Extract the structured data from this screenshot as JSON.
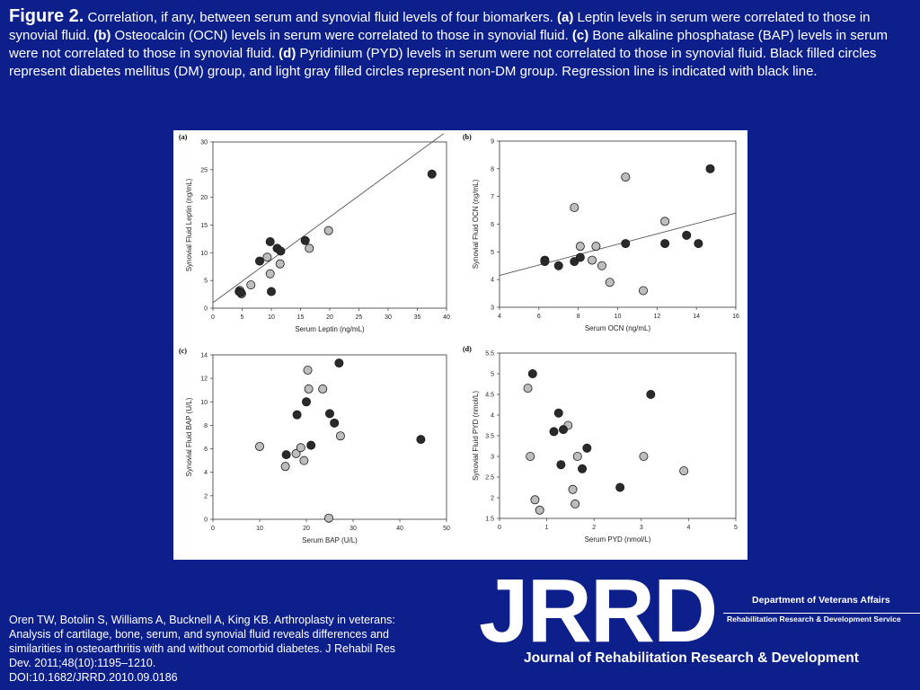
{
  "caption": {
    "figure_label": "Figure 2.",
    "intro": " Correlation, if any, between serum and synovial fluid levels of four biomarkers. ",
    "a_label": "(a)",
    "a_text": " Leptin levels in serum were correlated to those in synovial fluid. ",
    "b_label": "(b)",
    "b_text": " Osteocalcin (OCN) levels in serum were correlated to those in synovial fluid. ",
    "c_label": "(c)",
    "c_text": " Bone alkaline phosphatase (BAP) levels in serum were not correlated to those in synovial fluid. ",
    "d_label": "(d)",
    "d_text": " Pyridinium (PYD) levels in serum were not correlated to those in synovial fluid. Black filled circles represent diabetes mellitus (DM) group, and light gray filled circles represent non-DM group. Regression line is indicated with black line."
  },
  "citation": {
    "line1": "Oren TW, Botolin S, Williams A, Bucknell A, King KB. Arthroplasty in veterans:",
    "line2": "Analysis of cartilage, bone, serum, and synovial fluid reveals differences and",
    "line3": "similarities in osteoarthritis with and without comorbid diabetes. J Rehabil Res",
    "line4": "Dev. 2011;48(10):1195–1210.",
    "line5": "DOI:10.1682/JRRD.2010.09.0186"
  },
  "logo": {
    "text": "JRRD",
    "subtitle": "Journal of Rehabilitation Research & Development",
    "department": "Department of Veterans Affairs",
    "service": "Rehabilitation Research & Development Service"
  },
  "colors": {
    "background": "#0d1f8a",
    "dm": "#2a2a2a",
    "non_dm": "#bdbdbd",
    "regression": "#555555"
  },
  "chart_data": [
    {
      "type": "scatter",
      "panel_label": "(a)",
      "xlabel": "Serum Leptin (ng/mL)",
      "ylabel": "Synovial Fluid Leptin (ng/mL)",
      "xlim": [
        0,
        40
      ],
      "ylim": [
        0,
        30
      ],
      "xticks": [
        0,
        5,
        10,
        15,
        20,
        25,
        30,
        35,
        40
      ],
      "yticks": [
        0,
        5,
        10,
        15,
        20,
        25,
        30
      ],
      "regression": [
        [
          0,
          1
        ],
        [
          39.5,
          31.5
        ]
      ],
      "series": [
        {
          "group": "DM",
          "points": [
            [
              4.5,
              3.0
            ],
            [
              4.8,
              2.8
            ],
            [
              8,
              8.5
            ],
            [
              9.8,
              12
            ],
            [
              10,
              3
            ],
            [
              11,
              10.8
            ],
            [
              11.6,
              10.3
            ],
            [
              15.8,
              12.2
            ],
            [
              37.5,
              24.2
            ]
          ]
        },
        {
          "group": "non-DM",
          "points": [
            [
              4.6,
              3.2
            ],
            [
              4.9,
              2.6
            ],
            [
              6.5,
              4.2
            ],
            [
              9.3,
              9.2
            ],
            [
              9.8,
              6.2
            ],
            [
              11.5,
              8
            ],
            [
              16.5,
              10.8
            ],
            [
              19.8,
              14
            ]
          ]
        }
      ]
    },
    {
      "type": "scatter",
      "panel_label": "(b)",
      "xlabel": "Serum OCN (ng/mL)",
      "ylabel": "Synovial Fluid OCN (ng/mL)",
      "xlim": [
        4,
        16
      ],
      "ylim": [
        3,
        9
      ],
      "xticks": [
        4,
        6,
        8,
        10,
        12,
        14,
        16
      ],
      "yticks": [
        3,
        4,
        5,
        6,
        7,
        8,
        9
      ],
      "regression": [
        [
          4,
          4.15
        ],
        [
          16,
          6.4
        ]
      ],
      "series": [
        {
          "group": "DM",
          "points": [
            [
              6.3,
              4.7
            ],
            [
              6.3,
              4.65
            ],
            [
              7,
              4.5
            ],
            [
              7.8,
              4.65
            ],
            [
              8.1,
              4.8
            ],
            [
              10.4,
              5.3
            ],
            [
              12.4,
              5.3
            ],
            [
              13.5,
              5.6
            ],
            [
              14.1,
              5.3
            ],
            [
              14.7,
              8
            ]
          ]
        },
        {
          "group": "non-DM",
          "points": [
            [
              7.8,
              6.6
            ],
            [
              8.1,
              5.2
            ],
            [
              8.7,
              4.7
            ],
            [
              8.9,
              5.2
            ],
            [
              9.2,
              4.5
            ],
            [
              9.6,
              3.9
            ],
            [
              10.4,
              7.7
            ],
            [
              11.3,
              3.6
            ],
            [
              12.4,
              6.1
            ]
          ]
        }
      ]
    },
    {
      "type": "scatter",
      "panel_label": "(c)",
      "xlabel": "Serum BAP (U/L)",
      "ylabel": "Synovial Fluid BAP (U/L)",
      "xlim": [
        0,
        50
      ],
      "ylim": [
        0,
        14
      ],
      "xticks": [
        0,
        10,
        20,
        30,
        40,
        50
      ],
      "yticks": [
        0,
        2,
        4,
        6,
        8,
        10,
        12,
        14
      ],
      "series": [
        {
          "group": "DM",
          "points": [
            [
              15.7,
              5.5
            ],
            [
              18,
              8.9
            ],
            [
              20,
              10
            ],
            [
              21,
              6.3
            ],
            [
              25,
              9
            ],
            [
              26,
              8.2
            ],
            [
              27,
              13.3
            ],
            [
              44.5,
              6.8
            ]
          ]
        },
        {
          "group": "non-DM",
          "points": [
            [
              10,
              6.2
            ],
            [
              15.5,
              4.5
            ],
            [
              17.8,
              5.6
            ],
            [
              18.8,
              6.1
            ],
            [
              19.5,
              5
            ],
            [
              20.3,
              12.7
            ],
            [
              20.5,
              11.1
            ],
            [
              23.5,
              11.1
            ],
            [
              24.8,
              0.1
            ],
            [
              27.3,
              7.1
            ]
          ]
        }
      ]
    },
    {
      "type": "scatter",
      "panel_label": "(d)",
      "xlabel": "Serum PYD (nmol/L)",
      "ylabel": "Synovial Fluid PYD (nmol/L)",
      "xlim": [
        0,
        5
      ],
      "ylim": [
        1.5,
        5.5
      ],
      "xticks": [
        0,
        1,
        2,
        3,
        4,
        5
      ],
      "yticks": [
        1.5,
        2.0,
        2.5,
        3.0,
        3.5,
        4.0,
        4.5,
        5.0,
        5.5
      ],
      "series": [
        {
          "group": "DM",
          "points": [
            [
              0.7,
              5.0
            ],
            [
              1.15,
              3.6
            ],
            [
              1.25,
              4.05
            ],
            [
              1.3,
              2.8
            ],
            [
              1.35,
              3.65
            ],
            [
              1.75,
              2.7
            ],
            [
              1.85,
              3.2
            ],
            [
              2.55,
              2.25
            ],
            [
              3.2,
              4.5
            ]
          ]
        },
        {
          "group": "non-DM",
          "points": [
            [
              0.6,
              4.65
            ],
            [
              0.65,
              3.0
            ],
            [
              0.75,
              1.95
            ],
            [
              0.85,
              1.7
            ],
            [
              1.45,
              3.75
            ],
            [
              1.55,
              2.2
            ],
            [
              1.6,
              1.85
            ],
            [
              1.65,
              3.0
            ],
            [
              3.05,
              3.0
            ],
            [
              3.9,
              2.65
            ]
          ]
        }
      ]
    }
  ]
}
